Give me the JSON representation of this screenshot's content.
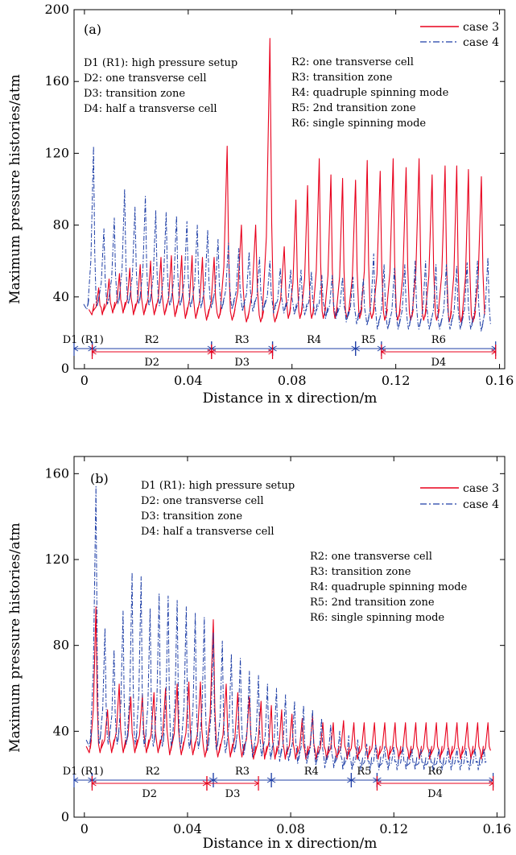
{
  "chart_data": [
    {
      "type": "line",
      "panel_label": "(a)",
      "xlabel": "Distance in x direction/m",
      "ylabel": "Maximum pressure histories/atm",
      "xlim": [
        -0.004,
        0.162
      ],
      "ylim": [
        0,
        200
      ],
      "xticks": [
        "0",
        "0.04",
        "0.08",
        "0.12",
        "0.16"
      ],
      "yticks": [
        "0",
        "40",
        "80",
        "120",
        "160",
        "200"
      ],
      "legend": {
        "placement": "top-right",
        "entries": [
          "case 3",
          "case 4"
        ]
      },
      "series": [
        {
          "name": "case 3",
          "color": "#e8001c",
          "style": "solid",
          "peaks_x": [
            0.0055,
            0.0095,
            0.0135,
            0.0175,
            0.0215,
            0.0255,
            0.0295,
            0.0335,
            0.0375,
            0.0415,
            0.0455,
            0.05,
            0.055,
            0.0605,
            0.066,
            0.0715,
            0.077,
            0.0815,
            0.086,
            0.0905,
            0.095,
            0.0995,
            0.1045,
            0.109,
            0.114,
            0.119,
            0.124,
            0.129,
            0.134,
            0.139,
            0.1435,
            0.148,
            0.153
          ],
          "peaks_y": [
            45,
            50,
            53,
            56,
            58,
            60,
            62,
            63,
            63,
            63,
            62,
            62,
            124,
            80,
            80,
            184,
            68,
            94,
            102,
            117,
            108,
            106,
            105,
            116,
            110,
            117,
            112,
            117,
            108,
            113,
            113,
            111,
            107
          ],
          "base_y": [
            30,
            30,
            31,
            31,
            30,
            30,
            30,
            30,
            29,
            28,
            28,
            27,
            28,
            27,
            26,
            26,
            26,
            28,
            28,
            28,
            28,
            28,
            28,
            28,
            28,
            27,
            27,
            27,
            27,
            27,
            26,
            26,
            26
          ]
        },
        {
          "name": "case 4",
          "color": "#1f3fa6",
          "style": "dash-dot",
          "peaks_x": [
            0.0035,
            0.0075,
            0.0115,
            0.0155,
            0.0195,
            0.0235,
            0.0275,
            0.0315,
            0.0355,
            0.0395,
            0.0435,
            0.0475,
            0.0515,
            0.0555,
            0.0595,
            0.0635,
            0.0675,
            0.0715,
            0.0755,
            0.0795,
            0.0835,
            0.0875,
            0.0915,
            0.0955,
            0.0995,
            0.1035,
            0.1075,
            0.1115,
            0.1155,
            0.1195,
            0.1235,
            0.1275,
            0.1315,
            0.1355,
            0.1395,
            0.1435,
            0.1475,
            0.1515,
            0.1555
          ],
          "peaks_y": [
            124,
            78,
            84,
            100,
            90,
            96,
            88,
            87,
            85,
            82,
            80,
            77,
            72,
            70,
            67,
            65,
            62,
            60,
            56,
            55,
            55,
            54,
            52,
            52,
            51,
            51,
            50,
            64,
            58,
            56,
            58,
            60,
            60,
            58,
            58,
            57,
            59,
            60,
            62
          ],
          "base_y": [
            33,
            35,
            36,
            36,
            36,
            36,
            35,
            35,
            35,
            35,
            34,
            34,
            34,
            33,
            33,
            32,
            32,
            32,
            31,
            31,
            30,
            30,
            30,
            28,
            28,
            26,
            25,
            24,
            22,
            22,
            22,
            22,
            22,
            22,
            22,
            22,
            22,
            22,
            21
          ]
        }
      ],
      "annotations_left": [
        "D1 (R1): high pressure setup",
        "D2: one transverse cell",
        "D3: transition zone",
        "D4: half a transverse cell"
      ],
      "annotations_right": [
        "R2: one transverse cell",
        "R3: transition zone",
        "R4: quadruple spinning mode",
        "R5: 2nd transition zone",
        "R6: single spinning mode"
      ],
      "zones_R": [
        {
          "label": "D1 (R1)",
          "from": -0.004,
          "to": 0.003
        },
        {
          "label": "R2",
          "from": 0.003,
          "to": 0.049
        },
        {
          "label": "R3",
          "from": 0.049,
          "to": 0.0725
        },
        {
          "label": "R4",
          "from": 0.0725,
          "to": 0.1045
        },
        {
          "label": "R5",
          "from": 0.1045,
          "to": 0.1145
        },
        {
          "label": "R6",
          "from": 0.1145,
          "to": 0.1585
        }
      ],
      "zones_D": [
        {
          "label": "D2",
          "from": 0.003,
          "to": 0.049
        },
        {
          "label": "D3",
          "from": 0.049,
          "to": 0.0725
        },
        {
          "label": "D4",
          "from": 0.1145,
          "to": 0.1585
        }
      ]
    },
    {
      "type": "line",
      "panel_label": "(b)",
      "xlabel": "Distance in x direction/m",
      "ylabel": "Maximum pressure histories/atm",
      "xlim": [
        -0.004,
        0.163
      ],
      "ylim": [
        0,
        168
      ],
      "xticks": [
        "0",
        "0.04",
        "0.08",
        "0.12",
        "0.16"
      ],
      "yticks": [
        "0",
        "40",
        "80",
        "120",
        "160"
      ],
      "legend": {
        "placement": "top-right",
        "entries": [
          "case 3",
          "case 4"
        ]
      },
      "series": [
        {
          "name": "case 3",
          "color": "#e8001c",
          "style": "solid",
          "peaks_x": [
            0.0045,
            0.009,
            0.0135,
            0.018,
            0.0225,
            0.027,
            0.0315,
            0.036,
            0.0405,
            0.045,
            0.05,
            0.055,
            0.0595,
            0.064,
            0.0685,
            0.0725,
            0.0765,
            0.0805,
            0.0845,
            0.0885,
            0.0925,
            0.0965,
            0.1005,
            0.1045,
            0.1085,
            0.1125,
            0.1165,
            0.1205,
            0.1245,
            0.1285,
            0.1325,
            0.1365,
            0.1405,
            0.1445,
            0.1485,
            0.1525,
            0.1565
          ],
          "peaks_y": [
            98,
            50,
            62,
            56,
            57,
            58,
            60,
            62,
            63,
            63,
            92,
            62,
            58,
            56,
            54,
            52,
            50,
            48,
            46,
            47,
            44,
            44,
            45,
            44,
            44,
            44,
            44,
            44,
            44,
            44,
            44,
            44,
            44,
            44,
            44,
            44,
            44
          ],
          "base_y": [
            30,
            30,
            30,
            30,
            30,
            30,
            30,
            29,
            29,
            29,
            28,
            28,
            28,
            28,
            27,
            27,
            27,
            27,
            27,
            27,
            27,
            27,
            27,
            27,
            27,
            27,
            27,
            27,
            27,
            27,
            27,
            27,
            27,
            27,
            27,
            27,
            27
          ]
        },
        {
          "name": "case 4",
          "color": "#1f3fa6",
          "style": "dash-dot",
          "peaks_x": [
            0.0045,
            0.008,
            0.0115,
            0.015,
            0.0185,
            0.022,
            0.0255,
            0.029,
            0.0325,
            0.036,
            0.0395,
            0.043,
            0.0465,
            0.05,
            0.0535,
            0.057,
            0.0605,
            0.064,
            0.0675,
            0.071,
            0.0745,
            0.078,
            0.0815,
            0.085,
            0.0885,
            0.092,
            0.0955,
            0.099,
            0.1025,
            0.106,
            0.1095,
            0.113,
            0.1165,
            0.12,
            0.1235,
            0.127,
            0.1305,
            0.134,
            0.1375,
            0.141,
            0.1445,
            0.148,
            0.1515,
            0.155
          ],
          "peaks_y": [
            154,
            88,
            78,
            96,
            114,
            112,
            97,
            104,
            103,
            101,
            98,
            95,
            93,
            86,
            82,
            76,
            74,
            68,
            66,
            62,
            60,
            57,
            54,
            52,
            50,
            46,
            43,
            40,
            38,
            36,
            34,
            34,
            33,
            33,
            33,
            32,
            32,
            32,
            32,
            32,
            32,
            32,
            32,
            32
          ],
          "base_y": [
            33,
            34,
            34,
            34,
            34,
            34,
            33,
            33,
            33,
            33,
            32,
            32,
            32,
            31,
            31,
            30,
            30,
            29,
            28,
            28,
            27,
            26,
            26,
            25,
            25,
            24,
            23,
            23,
            22,
            22,
            22,
            22,
            22,
            22,
            22,
            22,
            22,
            22,
            22,
            22,
            22,
            22,
            22,
            22
          ]
        }
      ],
      "annotations_left": [
        "D1 (R1): high pressure setup",
        "D2: one transverse cell",
        "D3: transition zone",
        "D4: half a transverse cell"
      ],
      "annotations_right": [
        "R2: one transverse cell",
        "R3: transition zone",
        "R4: quadruple spinning mode",
        "R5: 2nd transition zone",
        "R6: single spinning mode"
      ],
      "zones_R": [
        {
          "label": "D1 (R1)",
          "from": -0.004,
          "to": 0.003
        },
        {
          "label": "R2",
          "from": 0.003,
          "to": 0.05
        },
        {
          "label": "R3",
          "from": 0.05,
          "to": 0.0725
        },
        {
          "label": "R4",
          "from": 0.0725,
          "to": 0.1035
        },
        {
          "label": "R5",
          "from": 0.1035,
          "to": 0.1135
        },
        {
          "label": "R6",
          "from": 0.1135,
          "to": 0.1585
        }
      ],
      "zones_D": [
        {
          "label": "D2",
          "from": 0.003,
          "to": 0.0475
        },
        {
          "label": "D3",
          "from": 0.0475,
          "to": 0.0675
        },
        {
          "label": "D4",
          "from": 0.1135,
          "to": 0.1585
        }
      ]
    }
  ]
}
